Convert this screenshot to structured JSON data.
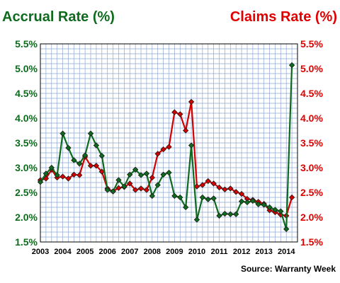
{
  "chart_data": {
    "type": "line",
    "left_axis_title": "Accrual Rate (%)",
    "right_axis_title": "Claims Rate (%)",
    "source": "Source: Warranty Week",
    "ylim": [
      1.5,
      5.5
    ],
    "y_ticks": [
      "1.5%",
      "2.0%",
      "2.5%",
      "3.0%",
      "3.5%",
      "4.0%",
      "4.5%",
      "5.0%",
      "5.5%"
    ],
    "x_range": [
      2003,
      2014.5
    ],
    "x_ticks": [
      "2003",
      "2004",
      "2005",
      "2006",
      "2007",
      "2008",
      "2009",
      "2010",
      "2011",
      "2012",
      "2013",
      "2014"
    ],
    "grid": true,
    "colors": {
      "accrual": "#0e6b1e",
      "claims": "#d40000",
      "grid": "#8fa8d0",
      "left_text": "#0e6b1e",
      "right_text": "#e00000"
    },
    "series": [
      {
        "name": "Accrual Rate (%)",
        "axis": "left",
        "x": [
          2003.0,
          2003.25,
          2003.5,
          2003.75,
          2004.0,
          2004.25,
          2004.5,
          2004.75,
          2005.0,
          2005.25,
          2005.5,
          2005.75,
          2006.0,
          2006.25,
          2006.5,
          2006.75,
          2007.0,
          2007.25,
          2007.5,
          2007.75,
          2008.0,
          2008.25,
          2008.5,
          2008.75,
          2009.0,
          2009.25,
          2009.5,
          2009.75,
          2010.0,
          2010.25,
          2010.5,
          2010.75,
          2011.0,
          2011.25,
          2011.5,
          2011.75,
          2012.0,
          2012.25,
          2012.5,
          2012.75,
          2013.0,
          2013.25,
          2013.5,
          2013.75,
          2014.0,
          2014.25
        ],
        "values": [
          2.71,
          2.88,
          3.0,
          2.85,
          3.69,
          3.4,
          3.15,
          3.08,
          3.25,
          3.69,
          3.45,
          3.24,
          2.55,
          2.52,
          2.75,
          2.62,
          2.86,
          2.96,
          2.85,
          2.88,
          2.43,
          2.65,
          2.86,
          2.9,
          2.43,
          2.4,
          2.2,
          3.45,
          1.95,
          2.4,
          2.36,
          2.38,
          2.03,
          2.07,
          2.06,
          2.06,
          2.32,
          2.3,
          2.33,
          2.26,
          2.25,
          2.2,
          2.15,
          2.12,
          1.76,
          5.07
        ]
      },
      {
        "name": "Claims Rate (%)",
        "axis": "right",
        "x": [
          2003.0,
          2003.25,
          2003.5,
          2003.75,
          2004.0,
          2004.25,
          2004.5,
          2004.75,
          2005.0,
          2005.25,
          2005.5,
          2005.75,
          2006.0,
          2006.25,
          2006.5,
          2006.75,
          2007.0,
          2007.25,
          2007.5,
          2007.75,
          2008.0,
          2008.25,
          2008.5,
          2008.75,
          2009.0,
          2009.25,
          2009.5,
          2009.75,
          2010.0,
          2010.25,
          2010.5,
          2010.75,
          2011.0,
          2011.25,
          2011.5,
          2011.75,
          2012.0,
          2012.25,
          2012.5,
          2012.75,
          2013.0,
          2013.25,
          2013.5,
          2013.75,
          2014.0,
          2014.25
        ],
        "values": [
          2.75,
          2.78,
          2.96,
          2.8,
          2.82,
          2.78,
          2.86,
          2.85,
          3.22,
          3.04,
          3.04,
          2.92,
          2.58,
          2.52,
          2.59,
          2.61,
          2.68,
          2.55,
          2.58,
          2.55,
          2.8,
          3.28,
          3.37,
          3.42,
          4.12,
          4.08,
          3.75,
          4.33,
          2.62,
          2.65,
          2.73,
          2.68,
          2.6,
          2.56,
          2.58,
          2.51,
          2.47,
          2.37,
          2.35,
          2.31,
          2.27,
          2.14,
          2.1,
          2.05,
          2.03,
          2.4
        ]
      }
    ]
  }
}
